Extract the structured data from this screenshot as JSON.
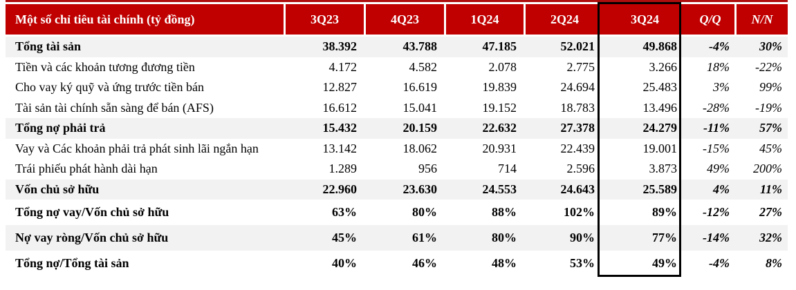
{
  "accent_color": "#c00000",
  "shaded_row_color": "#f2f2f2",
  "highlight_border_color": "#000000",
  "table": {
    "header": {
      "label": "Một số chỉ tiêu tài chính (tỷ đồng)",
      "columns": [
        "3Q23",
        "4Q23",
        "1Q24",
        "2Q24",
        "3Q24",
        "Q/Q",
        "N/N"
      ],
      "highlighted_column": "3Q24"
    },
    "rows": [
      {
        "label": "Tổng tài sản",
        "bold": true,
        "shaded": true,
        "tall": false,
        "values": [
          "38.392",
          "43.788",
          "47.185",
          "52.021",
          "49.868"
        ],
        "qq": "-4%",
        "nn": "30%"
      },
      {
        "label": "Tiền và các khoản tương đương tiền",
        "bold": false,
        "shaded": false,
        "tall": false,
        "values": [
          "4.172",
          "4.582",
          "2.078",
          "2.775",
          "3.266"
        ],
        "qq": "18%",
        "nn": "-22%"
      },
      {
        "label": "Cho vay ký quỹ và ứng trước tiền bán",
        "bold": false,
        "shaded": false,
        "tall": false,
        "values": [
          "12.827",
          "16.619",
          "19.839",
          "24.694",
          "25.483"
        ],
        "qq": "3%",
        "nn": "99%"
      },
      {
        "label": "Tài sản tài chính sẵn sàng để bán (AFS)",
        "bold": false,
        "shaded": false,
        "tall": false,
        "values": [
          "16.612",
          "15.041",
          "19.152",
          "18.783",
          "13.496"
        ],
        "qq": "-28%",
        "nn": "-19%"
      },
      {
        "label": "Tổng nợ phải trả",
        "bold": true,
        "shaded": true,
        "tall": false,
        "values": [
          "15.432",
          "20.159",
          "22.632",
          "27.378",
          "24.279"
        ],
        "qq": "-11%",
        "nn": "57%"
      },
      {
        "label": "Vay và Các khoản phải trả phát sinh lãi ngắn hạn",
        "bold": false,
        "shaded": false,
        "tall": false,
        "values": [
          "13.142",
          "18.062",
          "20.931",
          "22.439",
          "19.001"
        ],
        "qq": "-15%",
        "nn": "45%"
      },
      {
        "label": "Trái phiếu phát hành dài hạn",
        "bold": false,
        "shaded": false,
        "tall": false,
        "values": [
          "1.289",
          "956",
          "714",
          "2.596",
          "3.873"
        ],
        "qq": "49%",
        "nn": "200%"
      },
      {
        "label": "Vốn chủ sở hữu",
        "bold": true,
        "shaded": true,
        "tall": false,
        "values": [
          "22.960",
          "23.630",
          "24.553",
          "24.643",
          "25.589"
        ],
        "qq": "4%",
        "nn": "11%"
      },
      {
        "label": "Tổng nợ vay/Vốn chủ sở hữu",
        "bold": true,
        "shaded": false,
        "tall": true,
        "values": [
          "63%",
          "80%",
          "88%",
          "102%",
          "89%"
        ],
        "qq": "-12%",
        "nn": "27%"
      },
      {
        "label": "Nợ vay ròng/Vốn chủ sở hữu",
        "bold": true,
        "shaded": true,
        "tall": true,
        "values": [
          "45%",
          "61%",
          "80%",
          "90%",
          "77%"
        ],
        "qq": "-14%",
        "nn": "32%"
      },
      {
        "label": "Tổng nợ/Tổng tài sản",
        "bold": true,
        "shaded": false,
        "tall": true,
        "values": [
          "40%",
          "46%",
          "48%",
          "53%",
          "49%"
        ],
        "qq": "-4%",
        "nn": "8%"
      }
    ]
  }
}
